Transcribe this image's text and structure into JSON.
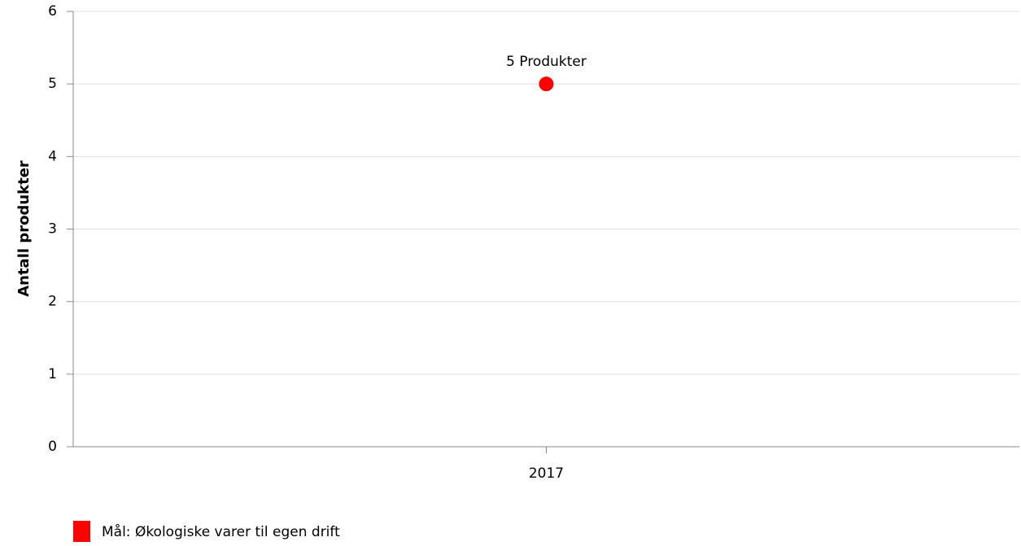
{
  "chart_data": {
    "type": "line",
    "ylabel": "Antall produkter",
    "categories": [
      "2017"
    ],
    "series": [
      {
        "name": "Mål: Økologiske varer til egen drift",
        "color": "#ff0000",
        "values": [
          5
        ],
        "value_labels": [
          "5 Produkter"
        ]
      }
    ],
    "ylim": [
      0,
      6
    ],
    "yticks": [
      0,
      1,
      2,
      3,
      4,
      5,
      6
    ],
    "grid": true,
    "legend": "bottom-left"
  }
}
